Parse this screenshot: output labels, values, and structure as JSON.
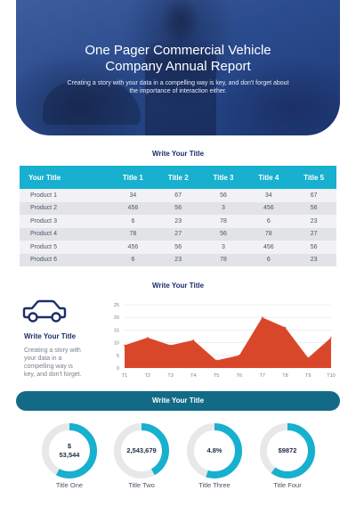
{
  "hero": {
    "title_line1": "One Pager Commercial Vehicle",
    "title_line2": "Company Annual Report",
    "subtitle": "Creating a story with your data in a compelling way is key, and don't forget about the importance of interaction either."
  },
  "table_section": {
    "title": "Write Your Title",
    "headers": [
      "Your Title",
      "Title 1",
      "Title 2",
      "Title 3",
      "Title 4",
      "Title 5"
    ],
    "rows": [
      [
        "Product 1",
        "34",
        "67",
        "56",
        "34",
        "67"
      ],
      [
        "Product 2",
        "456",
        "56",
        "3",
        "456",
        "56"
      ],
      [
        "Product 3",
        "6",
        "23",
        "78",
        "6",
        "23"
      ],
      [
        "Product 4",
        "78",
        "27",
        "56",
        "78",
        "27"
      ],
      [
        "Product 5",
        "456",
        "56",
        "3",
        "456",
        "56"
      ],
      [
        "Product 6",
        "6",
        "23",
        "78",
        "6",
        "23"
      ]
    ]
  },
  "chart_section": {
    "title": "Write Your Title",
    "side_title": "Write Your Title",
    "side_text_lines": [
      "Creating a story with",
      "your data in a",
      "compelling way is",
      "key, and don't forget."
    ],
    "icon": "truck-icon"
  },
  "chart_data": {
    "type": "area",
    "x": [
      "T1",
      "T2",
      "T3",
      "T4",
      "T5",
      "T6",
      "T7",
      "T8",
      "T9",
      "T10"
    ],
    "values": [
      9,
      12,
      9,
      11,
      3,
      5,
      20,
      16,
      4,
      12
    ],
    "ylim": [
      0,
      25
    ],
    "yticks": [
      "0",
      "5",
      "10",
      "15",
      "20",
      "25"
    ],
    "grid": true,
    "color": "#d9472b"
  },
  "donut_section": {
    "title": "Write Your Title",
    "accent": "#17b0cf",
    "track": "#e8e8ea",
    "items": [
      {
        "value_line1": "$",
        "value_line2": "53,544",
        "label": "Title One",
        "fraction": 0.58
      },
      {
        "value_line1": "2,543,679",
        "value_line2": "",
        "label": "Title Two",
        "fraction": 0.42
      },
      {
        "value_line1": "4.8%",
        "value_line2": "",
        "label": "Title Three",
        "fraction": 0.55
      },
      {
        "value_line1": "$9872",
        "value_line2": "",
        "label": "Title Four",
        "fraction": 0.6
      }
    ]
  }
}
